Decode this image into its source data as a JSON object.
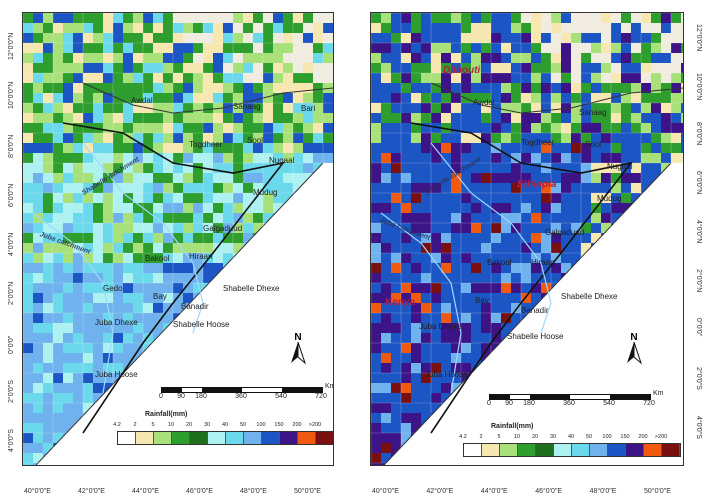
{
  "legend": {
    "title": "Rainfall(mm)",
    "classes": [
      "4.2",
      "2",
      "5",
      "10",
      "20",
      "30",
      "40",
      "50",
      "100",
      "150",
      "200",
      ">200"
    ],
    "colors": [
      "#ffffff",
      "#f7e7b0",
      "#a8e07a",
      "#2e9e2e",
      "#1f6f1f",
      "#aef1f1",
      "#6cd8ec",
      "#6fb2ee",
      "#1c56c4",
      "#3d1388",
      "#ef5a10",
      "#7a0f0f"
    ]
  },
  "scalebar": {
    "ticks": [
      "0",
      "90",
      "180",
      "360",
      "540",
      "720"
    ],
    "unit": "Km"
  },
  "north_label": "N",
  "x_axis_labels": [
    "40°0'0\"E",
    "42°0'0\"E",
    "44°0'0\"E",
    "46°0'0\"E",
    "48°0'0\"E",
    "50°0'0\"E"
  ],
  "y_axis_labels": [
    "12°0'0\"N",
    "10°0'0\"N",
    "8°0'0\"N",
    "6°0'0\"N",
    "4°0'0\"N",
    "2°0'0\"N",
    "0°0'0\"",
    "2°0'0\"S",
    "4°0'0\"S"
  ],
  "left_panel": {
    "regions": [
      "Awdal",
      "Sanaag",
      "Bari",
      "Togdheer",
      "Sool",
      "Nugaal",
      "Mudug",
      "Galgaduud",
      "Bakool",
      "Hiraan",
      "Gedo",
      "Bay",
      "Banadir",
      "Shabelle Dhexe",
      "Shabelle Hoose",
      "Juba Dhexe",
      "Juba Hoose"
    ],
    "rivers": [
      "Shabelle catchment",
      "Juba catchment"
    ]
  },
  "right_panel": {
    "regions": [
      "Awdal",
      "Sanaag",
      "Togdheer",
      "Sool",
      "Nugaal",
      "Mudug",
      "Galgaduud",
      "Bakool",
      "Hiraan",
      "Bay",
      "Banadir",
      "Shabelle Dhexe",
      "Shabelle Hoose",
      "Juba Dhexe",
      "Juba Hoose"
    ],
    "countries": [
      "Djibouti",
      "Ethiopia",
      "Kenya"
    ],
    "rivers": [
      "Shabelle catchment",
      "Juba catchment"
    ]
  }
}
